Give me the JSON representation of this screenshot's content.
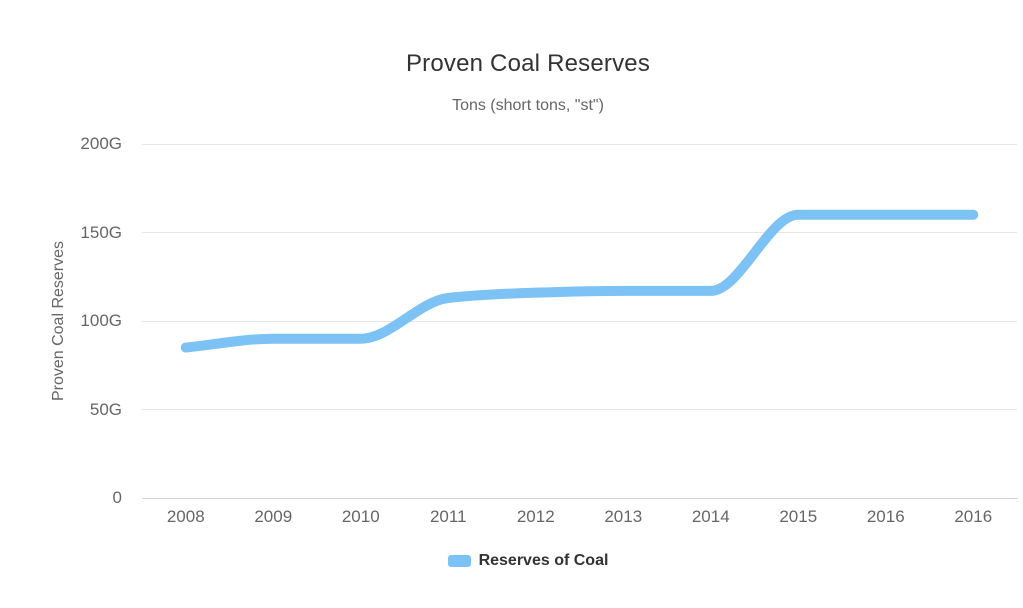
{
  "chart_data": {
    "type": "line",
    "title": "Proven Coal Reserves",
    "subtitle": "Tons (short tons, \"st\")",
    "ylabel": "Proven Coal Reserves",
    "xlabel": "",
    "categories": [
      "2008",
      "2009",
      "2010",
      "2011",
      "2012",
      "2013",
      "2014",
      "2015",
      "2016",
      "2016"
    ],
    "series": [
      {
        "name": "Reserves of Coal",
        "values": [
          85,
          90,
          90,
          113,
          116,
          117,
          117,
          160,
          160,
          160
        ],
        "color": "#7cc2f4"
      }
    ],
    "unit_suffix": "G",
    "ylim": [
      0,
      200
    ],
    "yticks": [
      {
        "value": 200,
        "label": "200G"
      },
      {
        "value": 150,
        "label": "150G"
      },
      {
        "value": 100,
        "label": "100G"
      },
      {
        "value": 50,
        "label": "50G"
      },
      {
        "value": 0,
        "label": "0"
      }
    ],
    "grid": "horizontal-only",
    "legend_position": "bottom-center",
    "line_style": "smooth, thick, round caps, no point markers"
  },
  "colors": {
    "series": "#7cc2f4",
    "title": "#333333",
    "subtitle": "#666666",
    "axis_label": "#666666",
    "grid": "#e6e6e6",
    "axis_line": "#ccd6eb",
    "legend_text": "#333333",
    "background": "#ffffff"
  }
}
